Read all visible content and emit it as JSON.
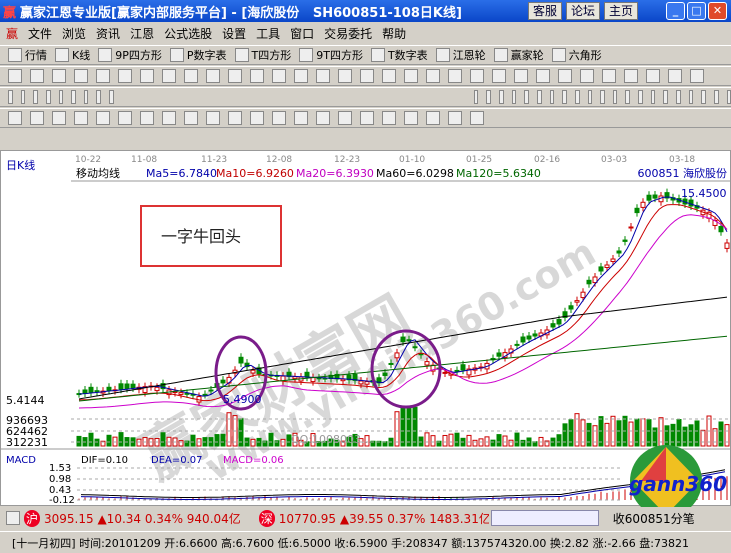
{
  "window": {
    "title": "赢家江恩专业版[赢家内部服务平台] - [海欣股份   SH600851-108日K线]",
    "buttons": [
      "客服",
      "论坛",
      "主页"
    ]
  },
  "menu": [
    "文件",
    "浏览",
    "资讯",
    "江恩",
    "公式选股",
    "设置",
    "工具",
    "窗口",
    "交易委托",
    "帮助"
  ],
  "toolbar1": [
    "行情",
    "K线",
    "9P四方形",
    "P数字表",
    "T四方形",
    "9T四方形",
    "T数字表",
    "江恩轮",
    "赢家轮",
    "六角形"
  ],
  "chart": {
    "period": "日K线",
    "indicator_title": "移动均线",
    "ma": [
      {
        "label": "Ma5=6.7840",
        "color": "#0000aa"
      },
      {
        "label": "Ma10=6.9260",
        "color": "#c00000"
      },
      {
        "label": "Ma20=6.3930",
        "color": "#c000c0"
      },
      {
        "label": "Ma60=6.0298",
        "color": "#000000"
      },
      {
        "label": "Ma120=5.6340",
        "color": "#006600"
      }
    ],
    "stock": "600851 海欣股份",
    "dates": [
      "10-22",
      "11-08",
      "11-23",
      "12-08",
      "12-23",
      "01-10",
      "01-25",
      "02-16",
      "03-03",
      "03-18"
    ],
    "price_low_label": "5.4144",
    "low_mark": "5.4900",
    "high_mark": "15.4500",
    "volume_ticks": [
      "936693",
      "624462",
      "312231"
    ],
    "annotation": "一字牛回头",
    "watermark": "赢家财富网",
    "watermark_url": "www.yingjia360.com",
    "qq": "QQ:1008003..."
  },
  "macd": {
    "title": "MACD",
    "dif": "DIF=0.10",
    "dea": "DEA=0.07",
    "macd": "MACD=0.06",
    "ticks": [
      "1.53",
      "0.98",
      "0.43",
      "-0.12"
    ]
  },
  "logo": "gann360",
  "status": {
    "sh_label": "沪",
    "sh": "3095.15 ▲10.34 0.34% 940.04亿",
    "sz_label": "深",
    "sz": "10770.95 ▲39.55 0.37% 1483.31亿",
    "tick": "收600851分笔"
  },
  "info": "[十一月初四] 时间:20101209 开:6.6600 高:6.7600 低:6.5000 收:6.5900 手:208347 额:137574320.00 换:2.82 涨:-2.66 盘:73821"
}
